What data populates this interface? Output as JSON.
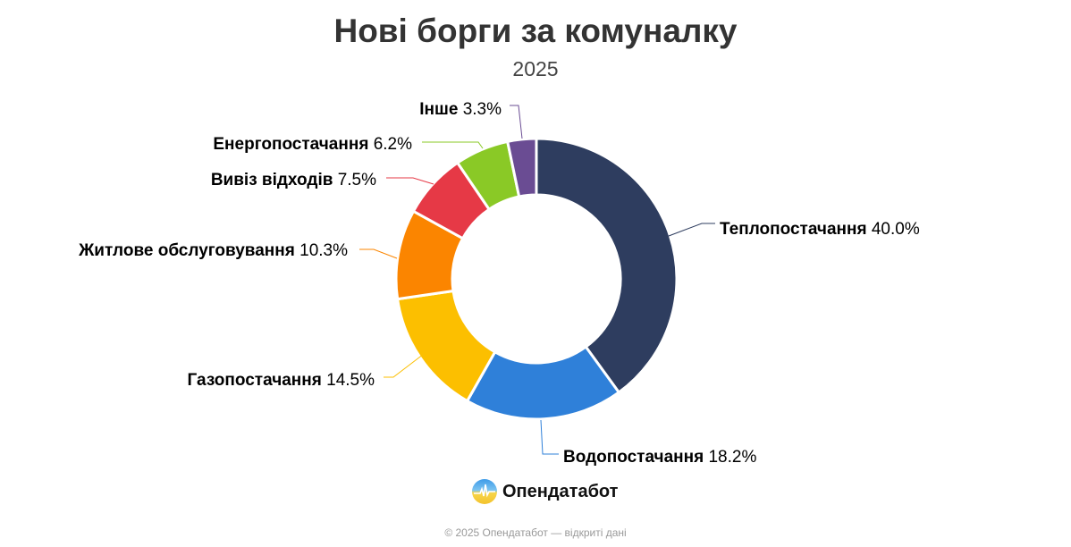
{
  "chart_data": {
    "type": "pie",
    "variant": "donut",
    "title": "Нові борги за комуналку",
    "subtitle": "2025",
    "slices": [
      {
        "label": "Теплопостачання",
        "value": 40.0,
        "display": "40.0%",
        "color": "#2e3d5f"
      },
      {
        "label": "Водопостачання",
        "value": 18.2,
        "display": "18.2%",
        "color": "#2f80d9"
      },
      {
        "label": "Газопостачання",
        "value": 14.5,
        "display": "14.5%",
        "color": "#fcbf00"
      },
      {
        "label": "Житлове обслуговування",
        "value": 10.3,
        "display": "10.3%",
        "color": "#fb8500"
      },
      {
        "label": "Вивіз відходів",
        "value": 7.5,
        "display": "7.5%",
        "color": "#e63946"
      },
      {
        "label": "Енергопостачання",
        "value": 6.2,
        "display": "6.2%",
        "color": "#8ac926"
      },
      {
        "label": "Інше",
        "value": 3.3,
        "display": "3.3%",
        "color": "#6a4c93"
      }
    ]
  },
  "brand": {
    "name": "Опендатабот"
  },
  "footer": "© 2025 Опендатабот — відкриті дані"
}
